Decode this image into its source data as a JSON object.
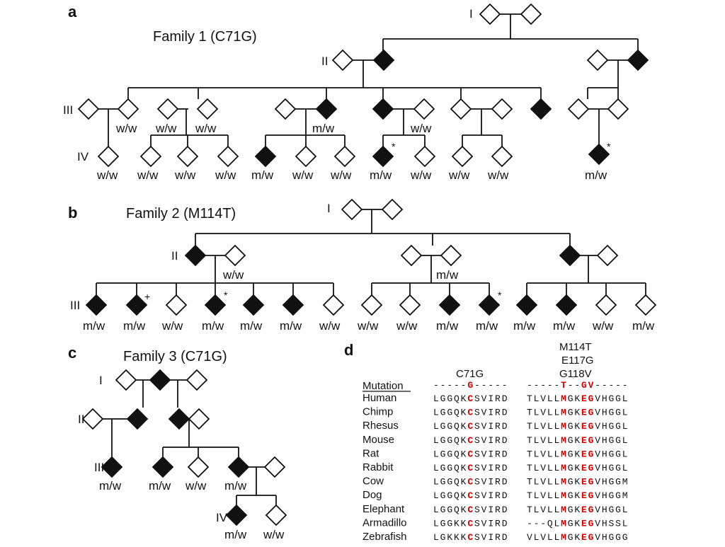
{
  "panels": {
    "a": {
      "letter": "a",
      "title": "Family 1 (C71G)"
    },
    "b": {
      "letter": "b",
      "title": "Family 2 (M114T)"
    },
    "c": {
      "letter": "c",
      "title": "Family 3 (C71G)"
    },
    "d": {
      "letter": "d"
    }
  },
  "generations": {
    "I": "I",
    "II": "II",
    "III": "III",
    "IV": "IV"
  },
  "genotypes": {
    "mw": "m/w",
    "ww": "w/w"
  },
  "marks": {
    "star": "*",
    "plus": "+"
  },
  "alignment": {
    "header_left": "C71G",
    "header_right_lines": [
      "M114T",
      "E117G",
      "G118V"
    ],
    "mutation_label": "Mutation",
    "mutation_row": {
      "left": "-----G-----",
      "right": "-----T--GV-----"
    },
    "rows": [
      {
        "species": "Human",
        "left": "LGGQKCSVIRD",
        "right": "TLVLLMGKEGVHGGL"
      },
      {
        "species": "Chimp",
        "left": "LGGQKCSVIRD",
        "right": "TLVLLMGKEGVHGGL"
      },
      {
        "species": "Rhesus",
        "left": "LGGQKCSVIRD",
        "right": "TLVLLMGKEGVHGGL"
      },
      {
        "species": "Mouse",
        "left": "LGGQKCSVIRD",
        "right": "TLVLLMGKEGVHGGL"
      },
      {
        "species": "Rat",
        "left": "LGGQKCSVIRD",
        "right": "TLVLLMGKEGVHGGL"
      },
      {
        "species": "Rabbit",
        "left": "LGGQKCSVIRD",
        "right": "TLVLLMGKEGVHGGL"
      },
      {
        "species": "Cow",
        "left": "LGGQKCSVIRD",
        "right": "TLVLLMGKEGVHGGM"
      },
      {
        "species": "Dog",
        "left": "LGGQKCSVIRD",
        "right": "TLVLLMGKEGVHGGM"
      },
      {
        "species": "Elephant",
        "left": "LGGQKCSVIRD",
        "right": "TLVLLMGKEGVHGGL"
      },
      {
        "species": "Armadillo",
        "left": "LGGKKCSVIRD",
        "right": "---QLMGKEGVHSSL"
      },
      {
        "species": "Zebrafish",
        "left": "LGKKKCSVIRD",
        "right": "VLVLLMGKEGVHGGG"
      }
    ],
    "highlight_left": [
      5
    ],
    "highlight_right": [
      5,
      8,
      9
    ],
    "highlight_color": "#d40000"
  }
}
